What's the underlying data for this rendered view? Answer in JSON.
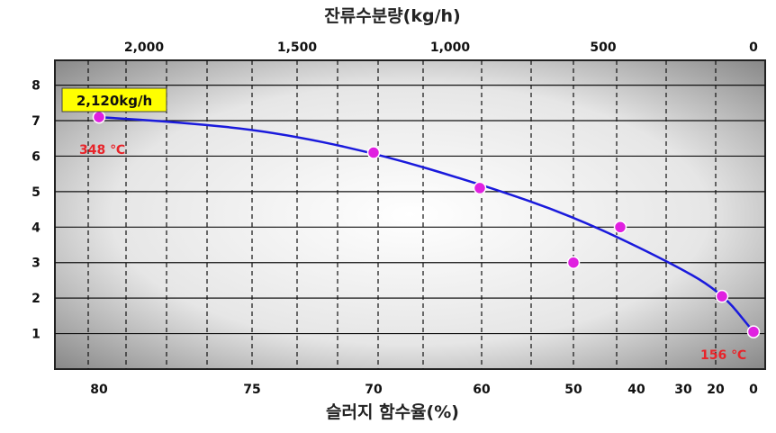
{
  "chart_data": {
    "type": "scatter",
    "title": "잔류수분량(kg/h)",
    "xlabel": "슬러지 함수율(%)",
    "ylabel": "",
    "ylim": [
      0,
      8.7
    ],
    "y_ticks": [
      "1",
      "2",
      "3",
      "4",
      "5",
      "6",
      "7",
      "8"
    ],
    "top_axis_ticks": [
      "2,000",
      "1,500",
      "1,000",
      "500",
      "0"
    ],
    "bottom_axis_ticks": [
      "80",
      "75",
      "70",
      "60",
      "50",
      "40",
      "30",
      "20",
      "0"
    ],
    "series": [
      {
        "points": [
          {
            "x": "80",
            "y": 7.1
          },
          {
            "x": "70",
            "y": 6.1
          },
          {
            "x": "60",
            "y": 5.1
          },
          {
            "x": "50",
            "y": 3.0
          },
          {
            "x": "40",
            "y": 4.0
          },
          {
            "x": "20",
            "y": 2.05
          },
          {
            "x": "0",
            "y": 1.05
          }
        ]
      }
    ],
    "trend_line": [
      7.1,
      6.95,
      6.7,
      6.1,
      5.2,
      4.3,
      3.1,
      2.2,
      1.05
    ],
    "annotations": {
      "box_label": "2,120kg/h",
      "start_temp": "348 ℃",
      "end_temp": "156 ℃"
    },
    "grid": true,
    "colors": {
      "line": "#1a1adc",
      "points": "#e020e0",
      "annotation_box": "#ffff00",
      "annotation_text": "#e8242a"
    }
  }
}
